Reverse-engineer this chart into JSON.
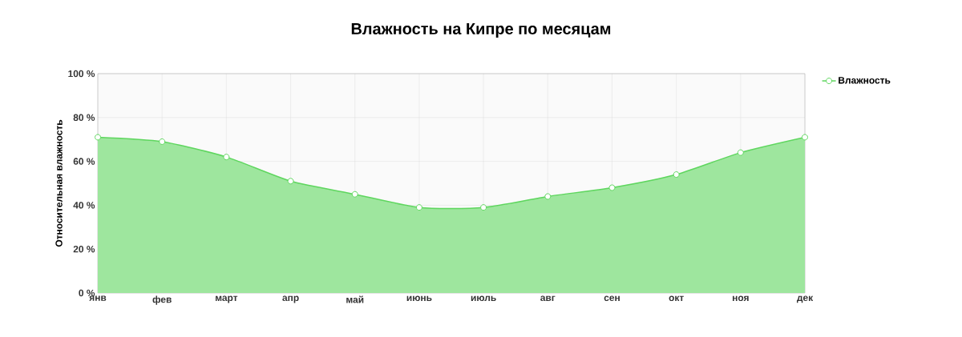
{
  "chart_data": {
    "type": "area",
    "title": "Влажность на Кипре по месяцам",
    "ylabel": "Относительная влажность",
    "categories": [
      "янв",
      "фев",
      "март",
      "апр",
      "май",
      "июнь",
      "июль",
      "авг",
      "сен",
      "окт",
      "ноя",
      "дек"
    ],
    "series": [
      {
        "name": "Влажность",
        "color": "#5ed65e",
        "values": [
          71,
          69,
          62,
          51,
          45,
          39,
          39,
          44,
          48,
          54,
          64,
          71
        ]
      }
    ],
    "ylim": [
      0,
      100
    ],
    "yticks": [
      {
        "value": 0,
        "label": "0 %"
      },
      {
        "value": 20,
        "label": "20 %"
      },
      {
        "value": 40,
        "label": "40 %"
      },
      {
        "value": 60,
        "label": "60 %"
      },
      {
        "value": 80,
        "label": "80 %"
      },
      {
        "value": 100,
        "label": "100 %"
      }
    ],
    "grid": true,
    "legend": "top right",
    "marker": "circle"
  }
}
